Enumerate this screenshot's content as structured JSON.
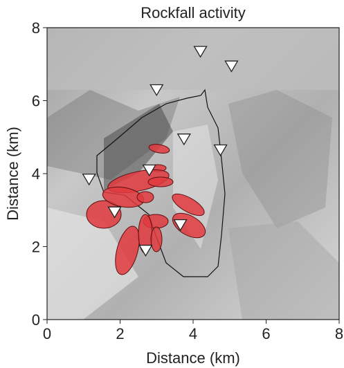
{
  "chart_data": {
    "type": "map",
    "title": "Rockfall activity",
    "xlabel": "Distance (km)",
    "ylabel": "Distance (km)",
    "xlim": [
      0,
      8
    ],
    "ylim": [
      0,
      8
    ],
    "xticks": [
      0,
      2,
      4,
      6,
      8
    ],
    "yticks": [
      0,
      2,
      4,
      6,
      8
    ],
    "stations": {
      "x": [
        4.2,
        5.05,
        3.0,
        3.75,
        4.75,
        2.8,
        1.15,
        1.85,
        3.65,
        2.7
      ],
      "y": [
        7.35,
        6.95,
        6.3,
        4.95,
        4.65,
        4.1,
        3.85,
        2.95,
        2.6,
        1.9
      ],
      "color": "#ffffff"
    }
  }
}
